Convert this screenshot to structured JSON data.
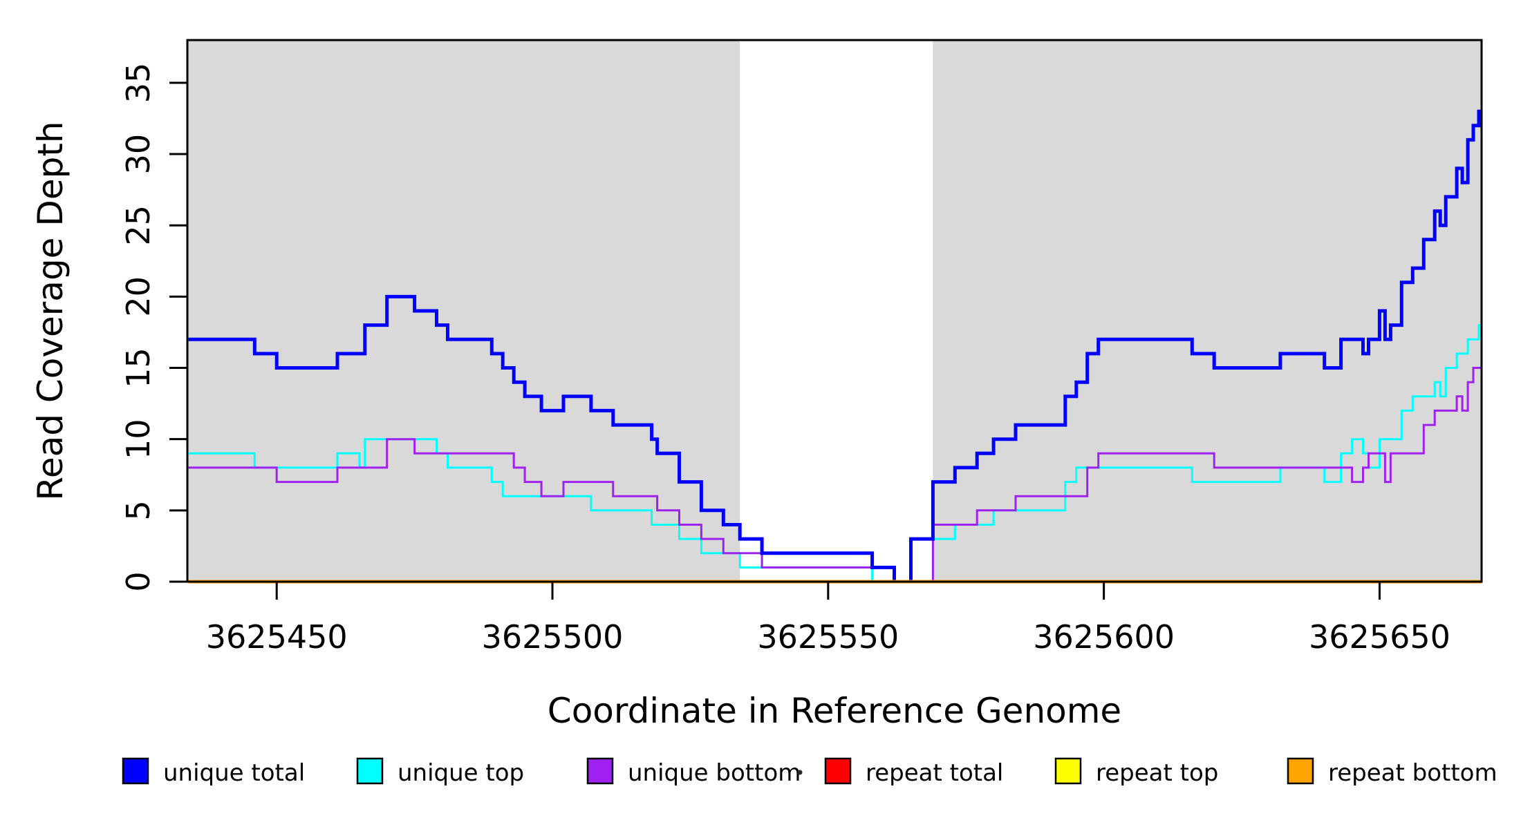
{
  "chart_data": {
    "type": "line",
    "subtype": "step",
    "title": "",
    "xlabel": "Coordinate in Reference Genome",
    "ylabel": "Read Coverage Depth",
    "xlim": [
      3625433.8,
      3625668.5
    ],
    "ylim": [
      0,
      38
    ],
    "grid": false,
    "x_ticks": [
      {
        "value": 3625450,
        "label": "3625450"
      },
      {
        "value": 3625500,
        "label": "3625500"
      },
      {
        "value": 3625550,
        "label": "3625550"
      },
      {
        "value": 3625600,
        "label": "3625600"
      },
      {
        "value": 3625650,
        "label": "3625650"
      }
    ],
    "y_ticks": [
      {
        "value": 0,
        "label": "0"
      },
      {
        "value": 5,
        "label": "5"
      },
      {
        "value": 10,
        "label": "10"
      },
      {
        "value": 15,
        "label": "15"
      },
      {
        "value": 20,
        "label": "20"
      },
      {
        "value": 25,
        "label": "25"
      },
      {
        "value": 30,
        "label": "30"
      },
      {
        "value": 35,
        "label": "35"
      }
    ],
    "shaded_regions": [
      {
        "from": 3625433.8,
        "to": 3625534,
        "color": "#D9D9D9"
      },
      {
        "from": 3625569,
        "to": 3625668.5,
        "color": "#D9D9D9"
      }
    ],
    "gap_region": {
      "from": 3625534,
      "to": 3625569,
      "color": "#FFFFFF"
    },
    "draw_order": [
      "repeat total",
      "repeat top",
      "unique top",
      "unique bottom",
      "unique total",
      "repeat bottom"
    ],
    "series": [
      {
        "name": "unique total",
        "color": "#0000FF",
        "line_width": 5,
        "points": [
          [
            3625434,
            17
          ],
          [
            3625446,
            16
          ],
          [
            3625450,
            15
          ],
          [
            3625461,
            16
          ],
          [
            3625466,
            18
          ],
          [
            3625470,
            20
          ],
          [
            3625475,
            19
          ],
          [
            3625479,
            18
          ],
          [
            3625481,
            17
          ],
          [
            3625489,
            16
          ],
          [
            3625491,
            15
          ],
          [
            3625493,
            14
          ],
          [
            3625495,
            13
          ],
          [
            3625498,
            12
          ],
          [
            3625502,
            13
          ],
          [
            3625507,
            12
          ],
          [
            3625511,
            11
          ],
          [
            3625518,
            10
          ],
          [
            3625519,
            9
          ],
          [
            3625523,
            7
          ],
          [
            3625527,
            5
          ],
          [
            3625531,
            4
          ],
          [
            3625534,
            3
          ],
          [
            3625538,
            2
          ],
          [
            3625558,
            1
          ],
          [
            3625562,
            0
          ],
          [
            3625565,
            3
          ],
          [
            3625569,
            7
          ],
          [
            3625573,
            8
          ],
          [
            3625577,
            9
          ],
          [
            3625580,
            10
          ],
          [
            3625584,
            11
          ],
          [
            3625593,
            13
          ],
          [
            3625595,
            14
          ],
          [
            3625597,
            16
          ],
          [
            3625599,
            17
          ],
          [
            3625616,
            16
          ],
          [
            3625620,
            15
          ],
          [
            3625632,
            16
          ],
          [
            3625640,
            15
          ],
          [
            3625643,
            17
          ],
          [
            3625647,
            16
          ],
          [
            3625648,
            17
          ],
          [
            3625650,
            19
          ],
          [
            3625651,
            17
          ],
          [
            3625652,
            18
          ],
          [
            3625654,
            21
          ],
          [
            3625656,
            22
          ],
          [
            3625658,
            24
          ],
          [
            3625660,
            26
          ],
          [
            3625661,
            25
          ],
          [
            3625662,
            27
          ],
          [
            3625664,
            29
          ],
          [
            3625665,
            28
          ],
          [
            3625666,
            31
          ],
          [
            3625667,
            32
          ],
          [
            3625668,
            33
          ]
        ]
      },
      {
        "name": "unique top",
        "color": "#00FFFF",
        "line_width": 3,
        "points": [
          [
            3625434,
            9
          ],
          [
            3625446,
            8
          ],
          [
            3625461,
            9
          ],
          [
            3625465,
            8
          ],
          [
            3625466,
            10
          ],
          [
            3625479,
            9
          ],
          [
            3625481,
            8
          ],
          [
            3625489,
            7
          ],
          [
            3625491,
            6
          ],
          [
            3625507,
            5
          ],
          [
            3625518,
            4
          ],
          [
            3625523,
            3
          ],
          [
            3625527,
            2
          ],
          [
            3625534,
            1
          ],
          [
            3625558,
            0
          ],
          [
            3625565,
            3
          ],
          [
            3625573,
            4
          ],
          [
            3625580,
            5
          ],
          [
            3625593,
            7
          ],
          [
            3625595,
            8
          ],
          [
            3625616,
            7
          ],
          [
            3625632,
            8
          ],
          [
            3625640,
            7
          ],
          [
            3625643,
            9
          ],
          [
            3625645,
            10
          ],
          [
            3625647,
            9
          ],
          [
            3625648,
            8
          ],
          [
            3625650,
            10
          ],
          [
            3625654,
            12
          ],
          [
            3625656,
            13
          ],
          [
            3625660,
            14
          ],
          [
            3625661,
            13
          ],
          [
            3625662,
            15
          ],
          [
            3625664,
            16
          ],
          [
            3625666,
            17
          ],
          [
            3625668,
            18
          ]
        ]
      },
      {
        "name": "unique bottom",
        "color": "#A020F0",
        "line_width": 3,
        "points": [
          [
            3625434,
            8
          ],
          [
            3625450,
            7
          ],
          [
            3625461,
            8
          ],
          [
            3625470,
            10
          ],
          [
            3625475,
            9
          ],
          [
            3625493,
            8
          ],
          [
            3625495,
            7
          ],
          [
            3625498,
            6
          ],
          [
            3625502,
            7
          ],
          [
            3625511,
            6
          ],
          [
            3625519,
            5
          ],
          [
            3625523,
            4
          ],
          [
            3625527,
            3
          ],
          [
            3625531,
            2
          ],
          [
            3625538,
            1
          ],
          [
            3625562,
            0
          ],
          [
            3625569,
            4
          ],
          [
            3625577,
            5
          ],
          [
            3625584,
            6
          ],
          [
            3625597,
            8
          ],
          [
            3625599,
            9
          ],
          [
            3625620,
            8
          ],
          [
            3625645,
            7
          ],
          [
            3625647,
            8
          ],
          [
            3625648,
            9
          ],
          [
            3625651,
            7
          ],
          [
            3625652,
            9
          ],
          [
            3625658,
            11
          ],
          [
            3625660,
            12
          ],
          [
            3625664,
            13
          ],
          [
            3625665,
            12
          ],
          [
            3625666,
            14
          ],
          [
            3625667,
            15
          ]
        ]
      },
      {
        "name": "repeat total",
        "color": "#FF0000",
        "line_width": 3,
        "points": [
          [
            3625434,
            0
          ]
        ]
      },
      {
        "name": "repeat top",
        "color": "#FFFF00",
        "line_width": 3,
        "points": [
          [
            3625434,
            0
          ]
        ]
      },
      {
        "name": "repeat bottom",
        "color": "#FFA500",
        "line_width": 5,
        "points": [
          [
            3625434,
            0
          ]
        ]
      }
    ]
  },
  "legend": {
    "position": "bottom",
    "entries": [
      {
        "label": "unique total",
        "color": "#0000FF"
      },
      {
        "label": "unique top",
        "color": "#00FFFF"
      },
      {
        "label": "unique bottom",
        "color": "#A020F0"
      },
      {
        "label": "repeat total",
        "color": "#FF0000"
      },
      {
        "label": "repeat top",
        "color": "#FFFF00"
      },
      {
        "label": "repeat bottom",
        "color": "#FFA500"
      }
    ],
    "stray_mark": "·"
  }
}
